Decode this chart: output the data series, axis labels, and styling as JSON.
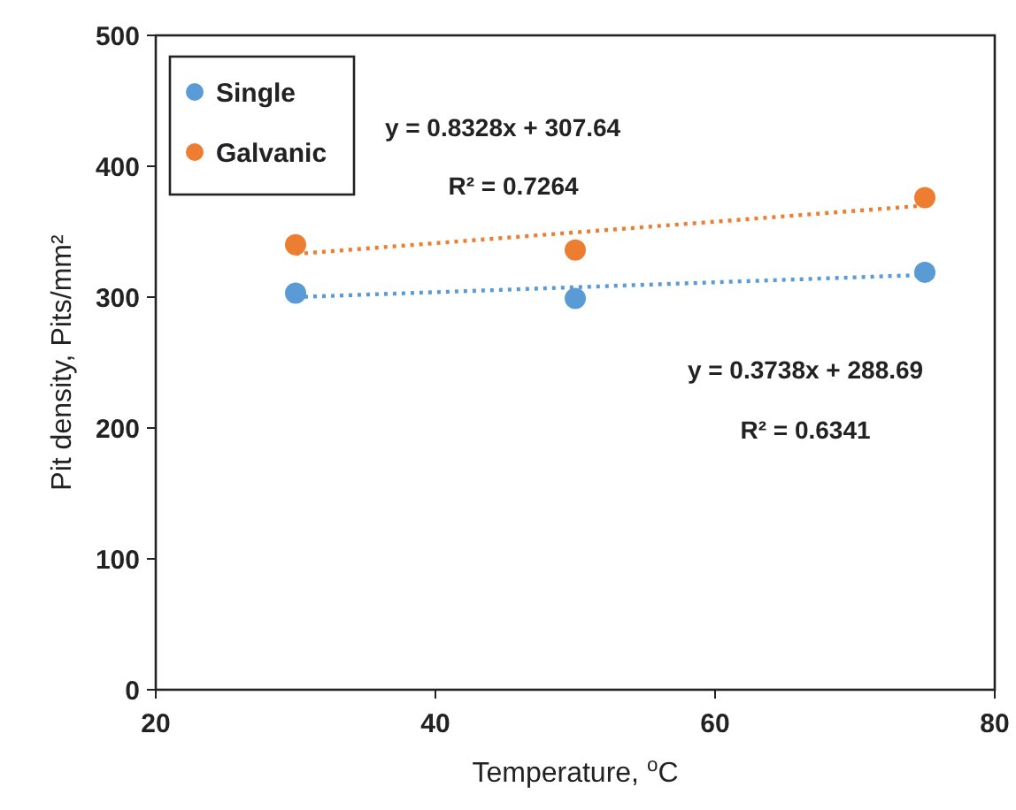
{
  "chart_data": {
    "type": "scatter",
    "xlabel": "Temperature, $^{o}$C",
    "ylabel": "Pit density, Pits/mm²",
    "xlim": [
      20,
      80
    ],
    "xticks": [
      20,
      40,
      60,
      80
    ],
    "ylim": [
      0,
      500
    ],
    "yticks": [
      0,
      100,
      200,
      300,
      400,
      500
    ],
    "grid": false,
    "legend": "top left",
    "marker": "circle",
    "series": [
      {
        "name": "Single",
        "color": "#5b9bd5",
        "x": [
          30,
          50,
          75
        ],
        "values": [
          303,
          299,
          319
        ]
      },
      {
        "name": "Galvanic",
        "color": "#ed7d31",
        "x": [
          30,
          50,
          75
        ],
        "values": [
          340,
          336,
          376
        ]
      },
      {
        "type": "line",
        "color": "#5b9bd5",
        "x": [
          30,
          75
        ],
        "values": [
          300,
          317
        ],
        "marker": "none",
        "line_style": "dotted"
      },
      {
        "type": "line",
        "color": "#ed7d31",
        "x": [
          30,
          75
        ],
        "values": [
          333,
          370
        ],
        "marker": "none",
        "line_style": "dotted"
      }
    ],
    "annotations": [
      "y = 0.8328x + 307.64",
      "R² = 0.7264",
      "y = 0.3738x + 288.69",
      "R² = 0.6341"
    ]
  }
}
